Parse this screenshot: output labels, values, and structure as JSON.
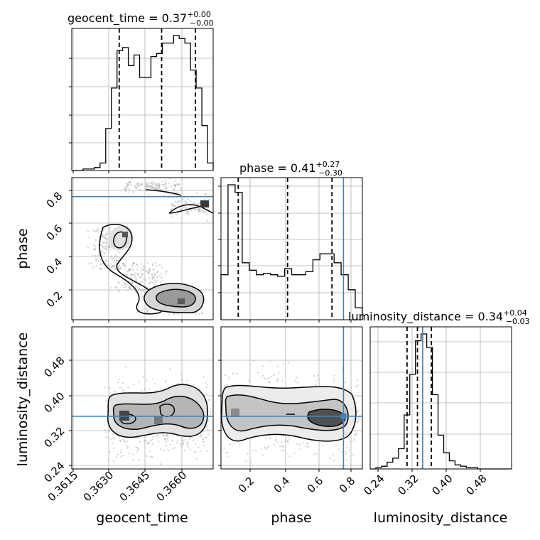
{
  "chart_data": {
    "type": "corner",
    "parameters": [
      "geocent_time",
      "phase",
      "luminosity_distance"
    ],
    "titles": [
      {
        "text": "geocent_time = 0.37",
        "plus": "+0.00",
        "minus": "−0.00"
      },
      {
        "text": "phase = 0.41",
        "plus": "+0.27",
        "minus": "−0.30"
      },
      {
        "text": "luminosity_distance = 0.34",
        "plus": "+0.04",
        "minus": "−0.03"
      }
    ],
    "axes": {
      "geocent_time": {
        "range": [
          0.3614,
          0.3673
        ],
        "ticks": [
          "0.3615",
          "0.3630",
          "0.3645",
          "0.3660"
        ],
        "tick_values": [
          0.3615,
          0.363,
          0.3645,
          0.366
        ]
      },
      "phase": {
        "range": [
          0.0,
          0.86
        ],
        "ticks": [
          "0.2",
          "0.4",
          "0.6",
          "0.8"
        ],
        "tick_values": [
          0.2,
          0.4,
          0.6,
          0.8
        ]
      },
      "luminosity_distance": {
        "range": [
          0.234,
          0.56
        ],
        "ticks": [
          "0.24",
          "0.32",
          "0.40",
          "0.48"
        ],
        "tick_values": [
          0.24,
          0.32,
          0.4,
          0.48
        ]
      }
    },
    "truths": {
      "geocent_time": null,
      "phase": 0.745,
      "luminosity_distance": 0.355
    },
    "quantiles": {
      "geocent_time": [
        0.36338,
        0.36515,
        0.36656
      ],
      "phase": [
        0.105,
        0.405,
        0.675
      ],
      "luminosity_distance": [
        0.319,
        0.343,
        0.375
      ]
    },
    "histograms": {
      "geocent_time": {
        "edges_range": [
          0.3614,
          0.3673
        ],
        "counts": [
          0,
          0,
          1,
          1,
          2,
          5,
          28,
          55,
          80,
          82,
          70,
          77,
          62,
          62,
          76,
          78,
          85,
          85,
          90,
          88,
          85,
          67,
          55,
          30,
          5
        ]
      },
      "phase": {
        "edges_range": [
          0.0,
          0.86
        ],
        "counts": [
          30,
          90,
          85,
          38,
          33,
          30,
          31,
          30,
          29,
          34,
          30,
          30,
          32,
          40,
          44,
          44,
          38,
          30,
          20,
          8
        ]
      },
      "luminosity_distance": {
        "edges_range": [
          0.234,
          0.56
        ],
        "counts": [
          0,
          1,
          2,
          5,
          8,
          15,
          40,
          70,
          95,
          100,
          90,
          55,
          25,
          12,
          6,
          3,
          2,
          1,
          1,
          0,
          0,
          0,
          0,
          0,
          0
        ]
      }
    },
    "grid": true
  }
}
